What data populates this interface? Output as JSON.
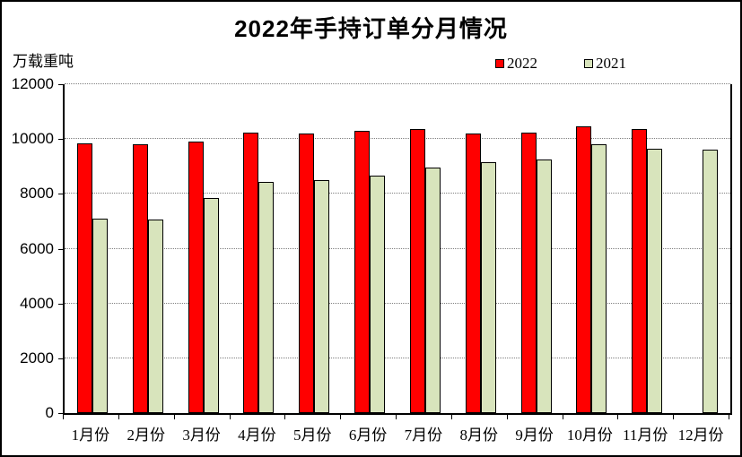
{
  "chart_data": {
    "type": "bar",
    "title": "2022年手持订单分月情况",
    "ylabel": "万载重吨",
    "xlabel": "",
    "categories": [
      "1月份",
      "2月份",
      "3月份",
      "4月份",
      "5月份",
      "6月份",
      "7月份",
      "8月份",
      "9月份",
      "10月份",
      "11月份",
      "12月份"
    ],
    "series": [
      {
        "name": "2022",
        "color": "#FF0000",
        "values": [
          9850,
          9800,
          9900,
          10250,
          10200,
          10300,
          10350,
          10200,
          10250,
          10450,
          10350,
          null
        ]
      },
      {
        "name": "2021",
        "color": "#D8E4BC",
        "values": [
          7100,
          7050,
          7850,
          8450,
          8500,
          8650,
          8950,
          9150,
          9250,
          9800,
          9650,
          9600
        ]
      }
    ],
    "ylim": [
      0,
      12000
    ],
    "yticks": [
      0,
      2000,
      4000,
      6000,
      8000,
      10000,
      12000
    ],
    "grid": "horizontal-dotted",
    "gridline_color": "#808080",
    "axis_color": "#000000",
    "bar_border_color": "#000000",
    "background_color": "#FFFFFF",
    "legend_position": "top-right"
  }
}
